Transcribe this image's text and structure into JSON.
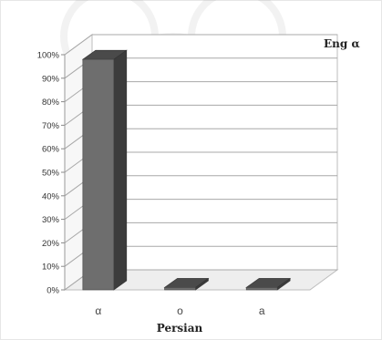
{
  "chart_data": {
    "type": "bar",
    "categories": [
      "α",
      "o",
      "a"
    ],
    "series": [
      {
        "name": "Eng α",
        "values": [
          98,
          1,
          1
        ]
      }
    ],
    "y_ticks": [
      "0%",
      "10%",
      "20%",
      "30%",
      "40%",
      "50%",
      "60%",
      "70%",
      "80%",
      "90%",
      "100%"
    ],
    "ylim": [
      0,
      100
    ],
    "xlabel": "Persian",
    "ylabel": "",
    "grid": true,
    "legend_position": "top-right",
    "bar_color": "#6e6e6e",
    "style": "3d"
  }
}
